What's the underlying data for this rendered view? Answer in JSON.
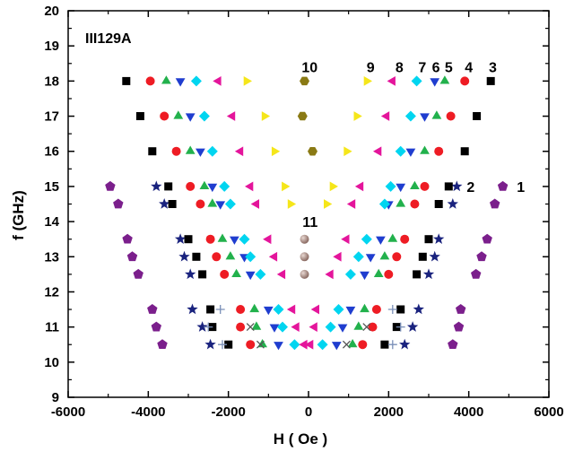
{
  "chart_data": {
    "type": "scatter",
    "title": "III129A",
    "xlabel": "H ( Oe )",
    "ylabel": "f (GHz)",
    "xlim": [
      -6000,
      6000
    ],
    "ylim": [
      9,
      20
    ],
    "xticks": [
      -6000,
      -4000,
      -2000,
      0,
      2000,
      4000,
      6000
    ],
    "yticks": [
      9,
      10,
      11,
      12,
      13,
      14,
      15,
      16,
      17,
      18,
      19,
      20
    ],
    "xtick_labels": [
      "-6000",
      "-4000",
      "-2000",
      "0",
      "2000",
      "4000",
      "6000"
    ],
    "ytick_labels": [
      "9",
      "10",
      "11",
      "12",
      "13",
      "14",
      "15",
      "16",
      "17",
      "18",
      "19",
      "20"
    ],
    "grid": false,
    "annotations": [
      {
        "text": "1",
        "x": 5200,
        "y": 15.0
      },
      {
        "text": "2",
        "x": 3950,
        "y": 15.0
      },
      {
        "text": "3",
        "x": 4500,
        "y": 18.4
      },
      {
        "text": "4",
        "x": 3900,
        "y": 18.4
      },
      {
        "text": "5",
        "x": 3400,
        "y": 18.4
      },
      {
        "text": "6",
        "x": 3080,
        "y": 18.4
      },
      {
        "text": "7",
        "x": 2740,
        "y": 18.4
      },
      {
        "text": "8",
        "x": 2170,
        "y": 18.4
      },
      {
        "text": "9",
        "x": 1450,
        "y": 18.4
      },
      {
        "text": "10",
        "x": -170,
        "y": 18.4
      },
      {
        "text": "11",
        "x": -150,
        "y": 14.0
      }
    ],
    "series": [
      {
        "marker": "pentagon",
        "color": "#7b1f8c",
        "points": [
          [
            -4950,
            15.0
          ],
          [
            -4750,
            14.5
          ],
          [
            -4520,
            13.5
          ],
          [
            -4400,
            13.0
          ],
          [
            -4250,
            12.5
          ],
          [
            -3900,
            11.5
          ],
          [
            -3800,
            11.0
          ],
          [
            -3650,
            10.5
          ],
          [
            4850,
            15.0
          ],
          [
            4650,
            14.5
          ],
          [
            4460,
            13.5
          ],
          [
            4320,
            13.0
          ],
          [
            4180,
            12.5
          ],
          [
            3800,
            11.5
          ],
          [
            3750,
            11.0
          ],
          [
            3600,
            10.5
          ]
        ]
      },
      {
        "marker": "star",
        "color": "#1a237e",
        "points": [
          [
            -3800,
            15.0
          ],
          [
            -3600,
            14.5
          ],
          [
            -3200,
            13.5
          ],
          [
            -3100,
            13.0
          ],
          [
            -2950,
            12.5
          ],
          [
            -2900,
            11.5
          ],
          [
            -2650,
            11.0
          ],
          [
            -2450,
            10.5
          ],
          [
            3700,
            15.0
          ],
          [
            3600,
            14.5
          ],
          [
            3250,
            13.5
          ],
          [
            3150,
            13.0
          ],
          [
            3000,
            12.5
          ],
          [
            2750,
            11.5
          ],
          [
            2600,
            11.0
          ],
          [
            2400,
            10.5
          ]
        ]
      },
      {
        "marker": "square",
        "color": "#000000",
        "points": [
          [
            -4550,
            18.0
          ],
          [
            -4200,
            17.0
          ],
          [
            -3900,
            16.0
          ],
          [
            -3500,
            15.0
          ],
          [
            -3400,
            14.5
          ],
          [
            -3000,
            13.5
          ],
          [
            -2800,
            13.0
          ],
          [
            -2650,
            12.5
          ],
          [
            -2450,
            11.5
          ],
          [
            -2400,
            11.0
          ],
          [
            -2000,
            10.5
          ],
          [
            4550,
            18.0
          ],
          [
            4200,
            17.0
          ],
          [
            3900,
            16.0
          ],
          [
            3500,
            15.0
          ],
          [
            3250,
            14.5
          ],
          [
            3000,
            13.5
          ],
          [
            2850,
            13.0
          ],
          [
            2700,
            12.5
          ],
          [
            2300,
            11.5
          ],
          [
            2200,
            11.0
          ],
          [
            1900,
            10.5
          ]
        ]
      },
      {
        "marker": "circle",
        "color": "#ee1c24",
        "points": [
          [
            -3950,
            18.0
          ],
          [
            -3600,
            17.0
          ],
          [
            -3300,
            16.0
          ],
          [
            -2950,
            15.0
          ],
          [
            -2700,
            14.5
          ],
          [
            -2450,
            13.5
          ],
          [
            -2300,
            13.0
          ],
          [
            -2100,
            12.5
          ],
          [
            -1700,
            11.5
          ],
          [
            -1700,
            11.0
          ],
          [
            -1450,
            10.5
          ],
          [
            3900,
            18.0
          ],
          [
            3550,
            17.0
          ],
          [
            3250,
            16.0
          ],
          [
            2900,
            15.0
          ],
          [
            2650,
            14.5
          ],
          [
            2400,
            13.5
          ],
          [
            2200,
            13.0
          ],
          [
            2000,
            12.5
          ],
          [
            1700,
            11.5
          ],
          [
            1600,
            11.0
          ],
          [
            1350,
            10.5
          ]
        ]
      },
      {
        "marker": "triangle-up",
        "color": "#22b14c",
        "points": [
          [
            -3550,
            18.0
          ],
          [
            -3250,
            17.0
          ],
          [
            -2950,
            16.0
          ],
          [
            -2600,
            15.0
          ],
          [
            -2400,
            14.5
          ],
          [
            -2150,
            13.5
          ],
          [
            -1950,
            13.0
          ],
          [
            -1800,
            12.5
          ],
          [
            -1350,
            11.5
          ],
          [
            -1300,
            11.0
          ],
          [
            -1150,
            10.5
          ],
          [
            3400,
            18.0
          ],
          [
            3200,
            17.0
          ],
          [
            2900,
            16.0
          ],
          [
            2650,
            15.0
          ],
          [
            2300,
            14.5
          ],
          [
            2100,
            13.5
          ],
          [
            1900,
            13.0
          ],
          [
            1750,
            12.5
          ],
          [
            1400,
            11.5
          ],
          [
            1250,
            11.0
          ],
          [
            1100,
            10.5
          ]
        ]
      },
      {
        "marker": "triangle-down",
        "color": "#1f3dcf",
        "points": [
          [
            -3200,
            18.0
          ],
          [
            -2950,
            17.0
          ],
          [
            -2700,
            16.0
          ],
          [
            -2400,
            15.0
          ],
          [
            -2200,
            14.5
          ],
          [
            -1850,
            13.5
          ],
          [
            -1600,
            13.0
          ],
          [
            -1450,
            12.5
          ],
          [
            -1000,
            11.5
          ],
          [
            -850,
            11.0
          ],
          [
            -750,
            10.5
          ],
          [
            3150,
            18.0
          ],
          [
            2900,
            17.0
          ],
          [
            2550,
            16.0
          ],
          [
            2300,
            15.0
          ],
          [
            2000,
            14.5
          ],
          [
            1800,
            13.5
          ],
          [
            1550,
            13.0
          ],
          [
            1400,
            12.5
          ],
          [
            1050,
            11.5
          ],
          [
            850,
            11.0
          ],
          [
            700,
            10.5
          ]
        ]
      },
      {
        "marker": "diamond",
        "color": "#00d5f0",
        "points": [
          [
            -2800,
            18.0
          ],
          [
            -2600,
            17.0
          ],
          [
            -2400,
            16.0
          ],
          [
            -2100,
            15.0
          ],
          [
            -1950,
            14.5
          ],
          [
            -1600,
            13.5
          ],
          [
            -1450,
            13.0
          ],
          [
            -1200,
            12.5
          ],
          [
            -750,
            11.5
          ],
          [
            -650,
            11.0
          ],
          [
            -350,
            10.5
          ],
          [
            2700,
            18.0
          ],
          [
            2550,
            17.0
          ],
          [
            2300,
            16.0
          ],
          [
            2050,
            15.0
          ],
          [
            1900,
            14.5
          ],
          [
            1450,
            13.5
          ],
          [
            1250,
            13.0
          ],
          [
            1050,
            12.5
          ],
          [
            750,
            11.5
          ],
          [
            550,
            11.0
          ],
          [
            350,
            10.5
          ]
        ]
      },
      {
        "marker": "triangle-left",
        "color": "#e4159b",
        "points": [
          [
            -2250,
            18.0
          ],
          [
            -1900,
            17.0
          ],
          [
            -1700,
            16.0
          ],
          [
            -1450,
            15.0
          ],
          [
            -1300,
            14.5
          ],
          [
            -1000,
            13.5
          ],
          [
            -850,
            13.0
          ],
          [
            -650,
            12.5
          ],
          [
            -400,
            11.5
          ],
          [
            -300,
            11.0
          ],
          [
            -100,
            10.5
          ],
          [
            2100,
            18.0
          ],
          [
            1950,
            17.0
          ],
          [
            1750,
            16.0
          ],
          [
            1300,
            15.0
          ],
          [
            1100,
            14.5
          ],
          [
            950,
            13.5
          ],
          [
            750,
            13.0
          ],
          [
            550,
            12.5
          ],
          [
            200,
            11.5
          ],
          [
            150,
            11.0
          ],
          [
            50,
            10.5
          ]
        ]
      },
      {
        "marker": "triangle-right",
        "color": "#f5e61a",
        "points": [
          [
            -1550,
            18.0
          ],
          [
            -1100,
            17.0
          ],
          [
            -850,
            16.0
          ],
          [
            -600,
            15.0
          ],
          [
            -450,
            14.5
          ],
          [
            1450,
            18.0
          ],
          [
            1200,
            17.0
          ],
          [
            950,
            16.0
          ],
          [
            600,
            15.0
          ],
          [
            450,
            14.5
          ]
        ]
      },
      {
        "marker": "hexagon",
        "color": "#8a7a14",
        "points": [
          [
            -100,
            18.0
          ],
          [
            -150,
            17.0
          ],
          [
            100,
            16.0
          ]
        ]
      },
      {
        "marker": "sphere",
        "color": "#9a7a72",
        "points": [
          [
            -100,
            13.5
          ],
          [
            -100,
            13.0
          ],
          [
            -100,
            12.5
          ]
        ]
      },
      {
        "marker": "plus",
        "color": "#7a8fb8",
        "points": [
          [
            -2200,
            11.5
          ],
          [
            -2500,
            11.0
          ],
          [
            -2150,
            10.5
          ],
          [
            2100,
            11.5
          ],
          [
            2300,
            11.0
          ],
          [
            2100,
            10.5
          ]
        ]
      },
      {
        "marker": "cross",
        "color": "#555555",
        "points": [
          [
            -1450,
            11.0
          ],
          [
            -1200,
            10.5
          ],
          [
            1450,
            11.0
          ],
          [
            950,
            10.5
          ]
        ]
      }
    ]
  }
}
